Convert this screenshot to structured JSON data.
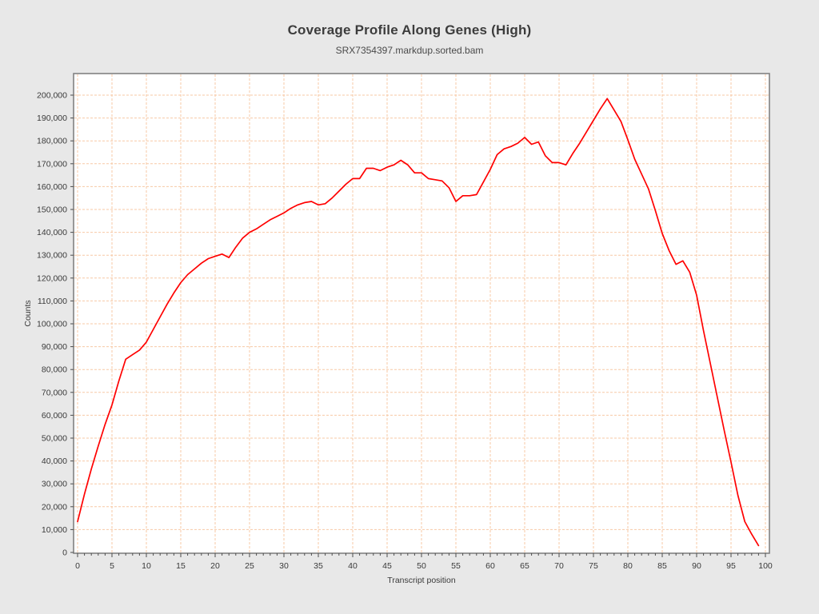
{
  "page": {
    "background": "#e8e8e8"
  },
  "header": {
    "title": "Coverage Profile Along Genes (High)",
    "subtitle": "SRX7354397.markdup.sorted.bam"
  },
  "chart_data": {
    "type": "line",
    "title": "Coverage Profile Along Genes (High)",
    "subtitle": "SRX7354397.markdup.sorted.bam",
    "xlabel": "Transcript position",
    "ylabel": "Counts",
    "xlim": [
      0,
      100
    ],
    "ylim": [
      0,
      200000
    ],
    "x_major_tick": 5,
    "x_minor_tick": 1,
    "y_major_tick": 10000,
    "grid": "both-dashed",
    "legend": "none",
    "colors": {
      "line": "#ff0000",
      "grid": "#f7c9a6",
      "frame": "#828282",
      "tick": "#4d4d4d",
      "label": "#3a3a3a",
      "plot_bg": "#ffffff",
      "page_bg": "#e8e8e8"
    },
    "series": [
      {
        "name": "SRX7354397.markdup.sorted.bam",
        "x": [
          0,
          1,
          2,
          3,
          4,
          5,
          6,
          7,
          8,
          9,
          10,
          11,
          12,
          13,
          14,
          15,
          16,
          17,
          18,
          19,
          20,
          21,
          22,
          23,
          24,
          25,
          26,
          27,
          28,
          29,
          30,
          31,
          32,
          33,
          34,
          35,
          36,
          37,
          38,
          39,
          40,
          41,
          42,
          43,
          44,
          45,
          46,
          47,
          48,
          49,
          50,
          51,
          52,
          53,
          54,
          55,
          56,
          57,
          58,
          59,
          60,
          61,
          62,
          63,
          64,
          65,
          66,
          67,
          68,
          69,
          70,
          71,
          72,
          73,
          74,
          75,
          76,
          77,
          78,
          79,
          80,
          81,
          82,
          83,
          84,
          85,
          86,
          87,
          88,
          89,
          90,
          91,
          92,
          93,
          94,
          95,
          96,
          97,
          98,
          99
        ],
        "values": [
          13500,
          25500,
          36500,
          46500,
          56000,
          64500,
          75000,
          84500,
          86500,
          88500,
          92000,
          97500,
          103000,
          108500,
          113500,
          118000,
          121500,
          124000,
          126500,
          128500,
          129500,
          130500,
          129000,
          133500,
          137500,
          140000,
          141500,
          143500,
          145500,
          147000,
          148500,
          150500,
          152000,
          153000,
          153500,
          152000,
          152500,
          155000,
          158000,
          161000,
          163500,
          163500,
          168000,
          168000,
          167000,
          168500,
          169500,
          171500,
          169500,
          166000,
          166000,
          163500,
          163000,
          162500,
          159500,
          153500,
          156000,
          156000,
          156500,
          162000,
          167500,
          174000,
          176500,
          177500,
          179000,
          181500,
          178500,
          179500,
          173500,
          170500,
          170500,
          169500,
          174500,
          179000,
          184000,
          189000,
          194000,
          198500,
          193500,
          188500,
          180500,
          172000,
          165500,
          159000,
          149500,
          139500,
          132000,
          126000,
          127500,
          122500,
          112500,
          97000,
          82500,
          68000,
          53500,
          39500,
          25000,
          13500,
          8000,
          3000
        ]
      }
    ],
    "y_tick_labels": [
      "0",
      "10,000",
      "20,000",
      "30,000",
      "40,000",
      "50,000",
      "60,000",
      "70,000",
      "80,000",
      "90,000",
      "100,000",
      "110,000",
      "120,000",
      "130,000",
      "140,000",
      "150,000",
      "160,000",
      "170,000",
      "180,000",
      "190,000",
      "200,000"
    ],
    "x_tick_labels": [
      "0",
      "5",
      "10",
      "15",
      "20",
      "25",
      "30",
      "35",
      "40",
      "45",
      "50",
      "55",
      "60",
      "65",
      "70",
      "75",
      "80",
      "85",
      "90",
      "95",
      "100"
    ]
  }
}
